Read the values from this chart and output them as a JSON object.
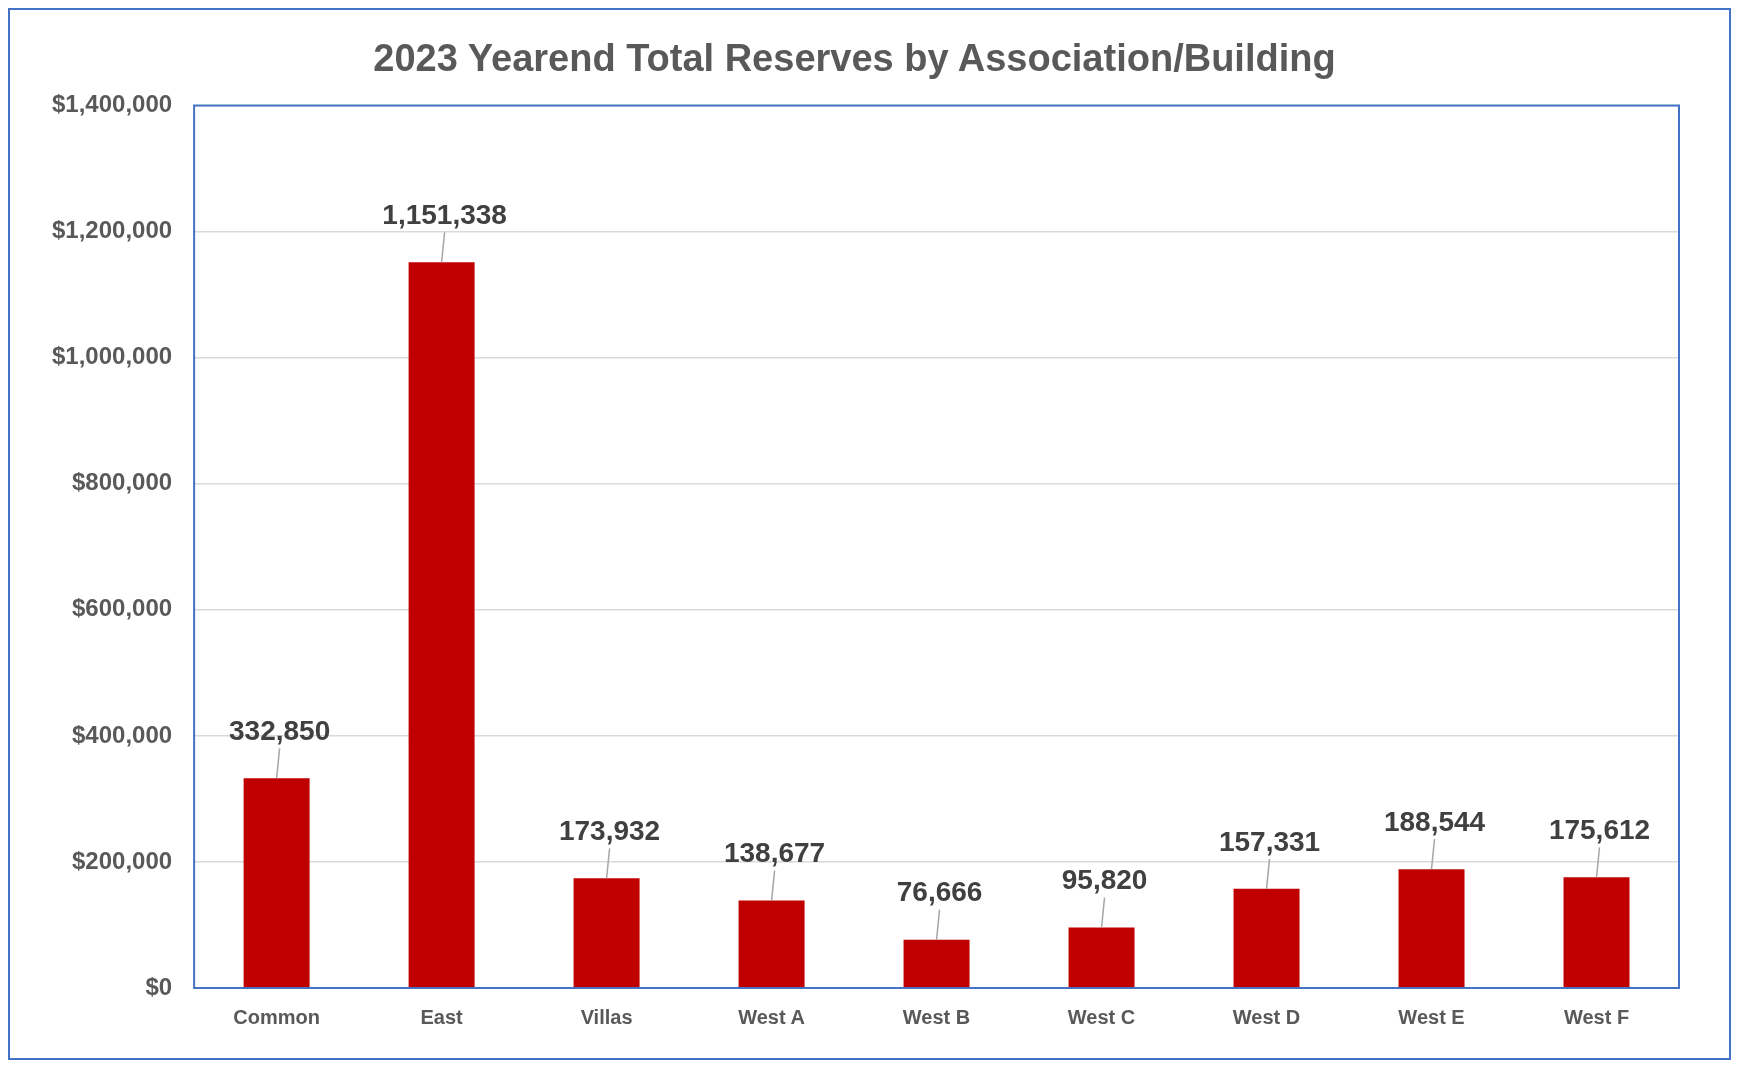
{
  "chart_data": {
    "type": "bar",
    "title": "2023 Yearend Total Reserves by Association/Building",
    "categories": [
      "Common",
      "East",
      "Villas",
      "West A",
      "West B",
      "West C",
      "West D",
      "West E",
      "West F"
    ],
    "values": [
      332850,
      1151338,
      173932,
      138677,
      76666,
      95820,
      157331,
      188544,
      175612
    ],
    "color": "#c00000",
    "ylim": [
      0,
      1400000
    ],
    "yticks": [
      {
        "value": 0,
        "label": "$0"
      },
      {
        "value": 200000,
        "label": "$200,000"
      },
      {
        "value": 400000,
        "label": "$400,000"
      },
      {
        "value": 600000,
        "label": "$600,000"
      },
      {
        "value": 800000,
        "label": "$800,000"
      },
      {
        "value": 1000000,
        "label": "$1,000,000"
      },
      {
        "value": 1200000,
        "label": "$1,200,000"
      },
      {
        "value": 1400000,
        "label": "$1,400,000"
      }
    ],
    "value_labels": [
      "332,850",
      "1,151,338",
      "173,932",
      "138,677",
      "76,666",
      "95,820",
      "157,331",
      "188,544",
      "175,612"
    ],
    "grid": "y",
    "legend": false
  }
}
